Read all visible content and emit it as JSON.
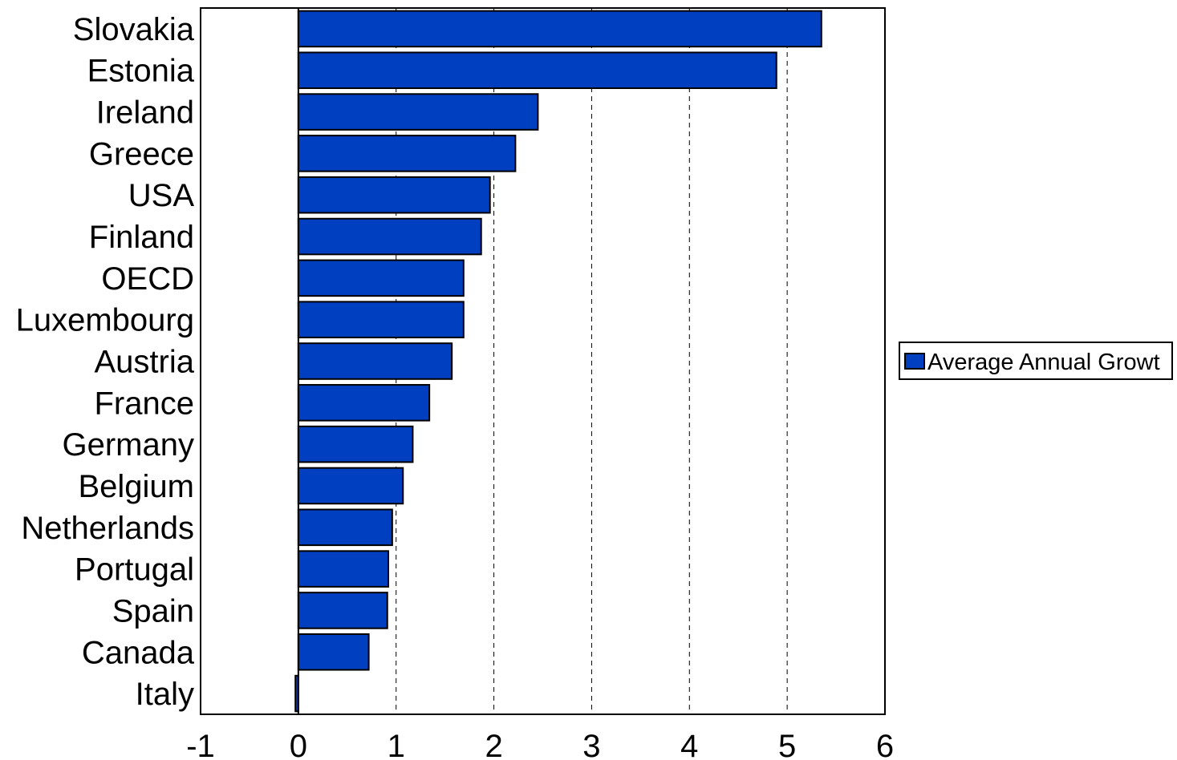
{
  "chart_data": {
    "type": "bar",
    "orientation": "horizontal",
    "categories": [
      "Slovakia",
      "Estonia",
      "Ireland",
      "Greece",
      "USA",
      "Finland",
      "OECD",
      "Luxembourg",
      "Austria",
      "France",
      "Germany",
      "Belgium",
      "Netherlands",
      "Portugal",
      "Spain",
      "Canada",
      "Italy"
    ],
    "series": [
      {
        "name": "Average Annual Growt",
        "color": "#003fbf",
        "values": [
          5.35,
          4.89,
          2.45,
          2.22,
          1.96,
          1.87,
          1.69,
          1.69,
          1.57,
          1.34,
          1.17,
          1.07,
          0.96,
          0.92,
          0.91,
          0.72,
          -0.03
        ]
      }
    ],
    "xlim": [
      -1,
      6
    ],
    "xticks": [
      "-1",
      "0",
      "1",
      "2",
      "3",
      "4",
      "5",
      "6"
    ],
    "grid": "vertical dashed",
    "legend_position": "right",
    "title": "",
    "xlabel": "",
    "ylabel": ""
  }
}
